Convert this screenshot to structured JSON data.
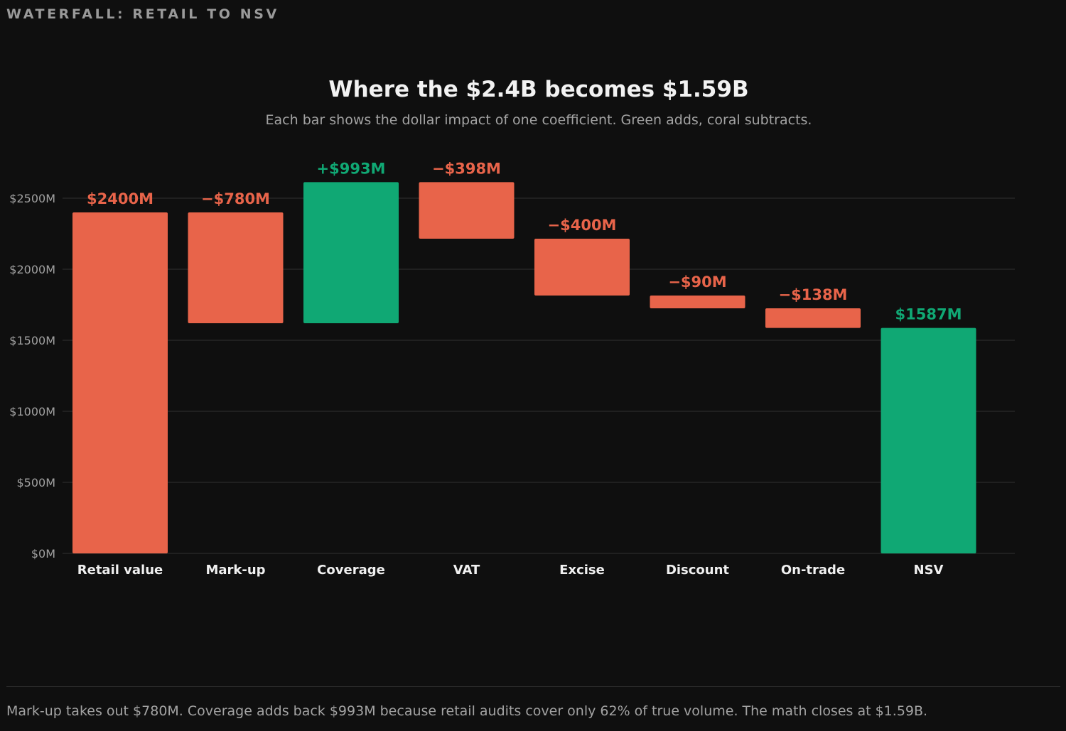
{
  "header": {
    "section_label": "WATERFALL: RETAIL TO NSV"
  },
  "chart_data": {
    "type": "bar",
    "subtype": "waterfall",
    "title": "Where the $2.4B becomes $1.59B",
    "subtitle": "Each bar shows the dollar impact of one coefficient. Green adds, coral subtracts.",
    "xlabel": "",
    "ylabel": "",
    "ylim": [
      0,
      2600
    ],
    "yticks": [
      0,
      500,
      1000,
      1500,
      2000,
      2500
    ],
    "ytick_labels": [
      "$0M",
      "$500M",
      "$1000M",
      "$1500M",
      "$2000M",
      "$2500M"
    ],
    "grid": true,
    "legend": "none",
    "categories": [
      "Retail value",
      "Mark-up",
      "Coverage",
      "VAT",
      "Excise",
      "Discount",
      "On-trade",
      "NSV"
    ],
    "bars": [
      {
        "label": "Retail value",
        "start": 0,
        "end": 2400,
        "value_label": "$2400M",
        "kind": "subtract"
      },
      {
        "label": "Mark-up",
        "start": 2400,
        "end": 1620,
        "value_label": "−$780M",
        "kind": "subtract"
      },
      {
        "label": "Coverage",
        "start": 1620,
        "end": 2613,
        "value_label": "+$993M",
        "kind": "add"
      },
      {
        "label": "VAT",
        "start": 2613,
        "end": 2215,
        "value_label": "−$398M",
        "kind": "subtract"
      },
      {
        "label": "Excise",
        "start": 2215,
        "end": 1815,
        "value_label": "−$400M",
        "kind": "subtract"
      },
      {
        "label": "Discount",
        "start": 1815,
        "end": 1725,
        "value_label": "−$90M",
        "kind": "subtract"
      },
      {
        "label": "On-trade",
        "start": 1725,
        "end": 1587,
        "value_label": "−$138M",
        "kind": "subtract"
      },
      {
        "label": "NSV",
        "start": 0,
        "end": 1587,
        "value_label": "$1587M",
        "kind": "add"
      }
    ],
    "colors": {
      "add": "#10a874",
      "subtract": "#e8644a",
      "grid": "#262626",
      "tick_text": "#a0a0a0",
      "category_text": "#f0f0f0"
    }
  },
  "footer": {
    "note": "Mark-up takes out $780M. Coverage adds back $993M because retail audits cover only 62% of true volume. The math closes at $1.59B."
  }
}
